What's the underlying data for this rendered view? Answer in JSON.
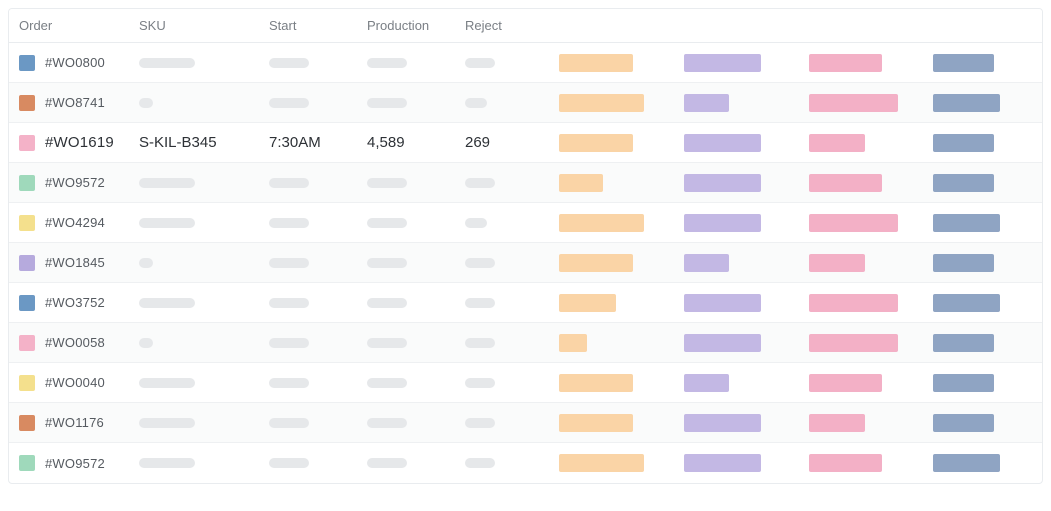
{
  "columns": {
    "order": "Order",
    "sku": "SKU",
    "start": "Start",
    "production": "Production",
    "reject": "Reject"
  },
  "placeholder_color": "#e6e8ea",
  "bar_colors": {
    "orange": "#fad4a6",
    "purple": "#c3b8e4",
    "pink": "#f3b0c6",
    "blue": "#8fa4c3"
  },
  "placeholder_widths": {
    "sku_long": 56,
    "sku_short": 14,
    "start": 40,
    "prod": 40,
    "reject_long": 30,
    "reject_short": 22
  },
  "rows": [
    {
      "swatch": "#6b98c4",
      "order": "#WO0800",
      "focus": false,
      "placeholders": {
        "sku": "long",
        "reject": "long"
      },
      "bars": {
        "orange": 78,
        "purple": 82,
        "pink": 78,
        "blue": 64
      }
    },
    {
      "swatch": "#d88a61",
      "order": "#WO8741",
      "focus": false,
      "placeholders": {
        "sku": "short",
        "reject": "short"
      },
      "bars": {
        "orange": 90,
        "purple": 48,
        "pink": 94,
        "blue": 70
      }
    },
    {
      "swatch": "#f4b2c8",
      "order": "#WO1619",
      "focus": true,
      "sku": "S-KIL-B345",
      "start": "7:30AM",
      "production": "4,589",
      "reject": "269",
      "bars": {
        "orange": 78,
        "purple": 82,
        "pink": 60,
        "blue": 64
      }
    },
    {
      "swatch": "#9fd9bb",
      "order": "#WO9572",
      "focus": false,
      "placeholders": {
        "sku": "long",
        "reject": "long"
      },
      "bars": {
        "orange": 46,
        "purple": 82,
        "pink": 78,
        "blue": 64
      }
    },
    {
      "swatch": "#f4e08d",
      "order": "#WO4294",
      "focus": false,
      "placeholders": {
        "sku": "long",
        "reject": "short"
      },
      "bars": {
        "orange": 90,
        "purple": 82,
        "pink": 94,
        "blue": 70
      }
    },
    {
      "swatch": "#b6aadd",
      "order": "#WO1845",
      "focus": false,
      "placeholders": {
        "sku": "short",
        "reject": "long"
      },
      "bars": {
        "orange": 78,
        "purple": 48,
        "pink": 60,
        "blue": 64
      }
    },
    {
      "swatch": "#6b98c4",
      "order": "#WO3752",
      "focus": false,
      "placeholders": {
        "sku": "long",
        "reject": "long"
      },
      "bars": {
        "orange": 60,
        "purple": 82,
        "pink": 94,
        "blue": 70
      }
    },
    {
      "swatch": "#f4b2c8",
      "order": "#WO0058",
      "focus": false,
      "placeholders": {
        "sku": "short",
        "reject": "long"
      },
      "bars": {
        "orange": 30,
        "purple": 82,
        "pink": 94,
        "blue": 64
      }
    },
    {
      "swatch": "#f4e08d",
      "order": "#WO0040",
      "focus": false,
      "placeholders": {
        "sku": "long",
        "reject": "long"
      },
      "bars": {
        "orange": 78,
        "purple": 48,
        "pink": 78,
        "blue": 64
      }
    },
    {
      "swatch": "#d88a61",
      "order": "#WO1176",
      "focus": false,
      "placeholders": {
        "sku": "long",
        "reject": "long"
      },
      "bars": {
        "orange": 78,
        "purple": 82,
        "pink": 60,
        "blue": 64
      }
    },
    {
      "swatch": "#9fd9bb",
      "order": "#WO9572",
      "focus": false,
      "placeholders": {
        "sku": "long",
        "reject": "long"
      },
      "bars": {
        "orange": 90,
        "purple": 82,
        "pink": 78,
        "blue": 70
      }
    }
  ]
}
